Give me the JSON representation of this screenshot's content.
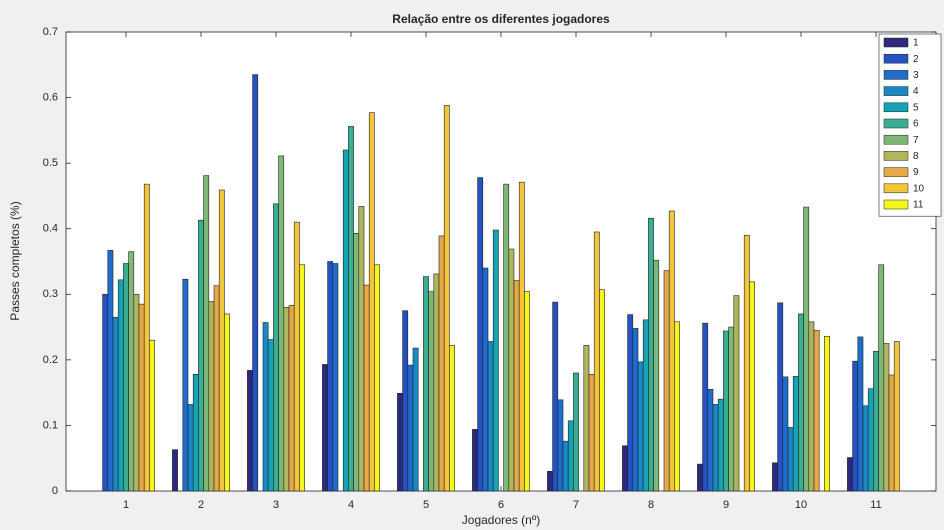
{
  "chart_data": {
    "type": "bar",
    "title": "Relação entre os diferentes jogadores",
    "xlabel": "Jogadores (nº)",
    "ylabel": "Passes completos (%)",
    "categories": [
      "1",
      "2",
      "3",
      "4",
      "5",
      "6",
      "7",
      "8",
      "9",
      "10",
      "11"
    ],
    "ylim": [
      0,
      0.7
    ],
    "yticks": [
      0,
      0.1,
      0.2,
      0.3,
      0.4,
      0.5,
      0.6,
      0.7
    ],
    "grid": false,
    "legend": "top-right",
    "series": [
      {
        "name": "1",
        "color": "#2c2a80",
        "values": [
          0,
          0.063,
          0.184,
          0.193,
          0.149,
          0.094,
          0.03,
          0.069,
          0.041,
          0.043,
          0.051
        ]
      },
      {
        "name": "2",
        "color": "#2451c4",
        "values": [
          0.3,
          0,
          0.635,
          0.35,
          0.275,
          0.478,
          0.288,
          0.269,
          0.256,
          0.287,
          0.198
        ]
      },
      {
        "name": "3",
        "color": "#1f6ccc",
        "values": [
          0.367,
          0.323,
          0,
          0.347,
          0.192,
          0.34,
          0.139,
          0.248,
          0.155,
          0.174,
          0.235
        ]
      },
      {
        "name": "4",
        "color": "#1a88c6",
        "values": [
          0.265,
          0.132,
          0.257,
          0,
          0.218,
          0.228,
          0.076,
          0.197,
          0.132,
          0.097,
          0.13
        ]
      },
      {
        "name": "5",
        "color": "#17a3b6",
        "values": [
          0.322,
          0.178,
          0.231,
          0.52,
          0,
          0.398,
          0.107,
          0.261,
          0.14,
          0.175,
          0.156
        ]
      },
      {
        "name": "6",
        "color": "#3aae92",
        "values": [
          0.347,
          0.413,
          0.438,
          0.556,
          0.327,
          0,
          0.18,
          0.416,
          0.244,
          0.27,
          0.213
        ]
      },
      {
        "name": "7",
        "color": "#7eb877",
        "values": [
          0.365,
          0.481,
          0.511,
          0.393,
          0.304,
          0.468,
          0,
          0.352,
          0.25,
          0.433,
          0.345
        ]
      },
      {
        "name": "8",
        "color": "#b0b65e",
        "values": [
          0.3,
          0.289,
          0.28,
          0.434,
          0.331,
          0.369,
          0.222,
          0,
          0.298,
          0.258,
          0.225
        ]
      },
      {
        "name": "9",
        "color": "#e6a848",
        "values": [
          0.285,
          0.313,
          0.283,
          0.314,
          0.389,
          0.321,
          0.178,
          0.336,
          0,
          0.245,
          0.177
        ]
      },
      {
        "name": "10",
        "color": "#f2c53a",
        "values": [
          0.468,
          0.459,
          0.41,
          0.577,
          0.588,
          0.471,
          0.395,
          0.427,
          0.39,
          0,
          0.228
        ]
      },
      {
        "name": "11",
        "color": "#f6f51c",
        "values": [
          0.23,
          0.27,
          0.345,
          0.345,
          0.222,
          0.304,
          0.307,
          0.258,
          0.319,
          0.236,
          0
        ]
      }
    ]
  }
}
